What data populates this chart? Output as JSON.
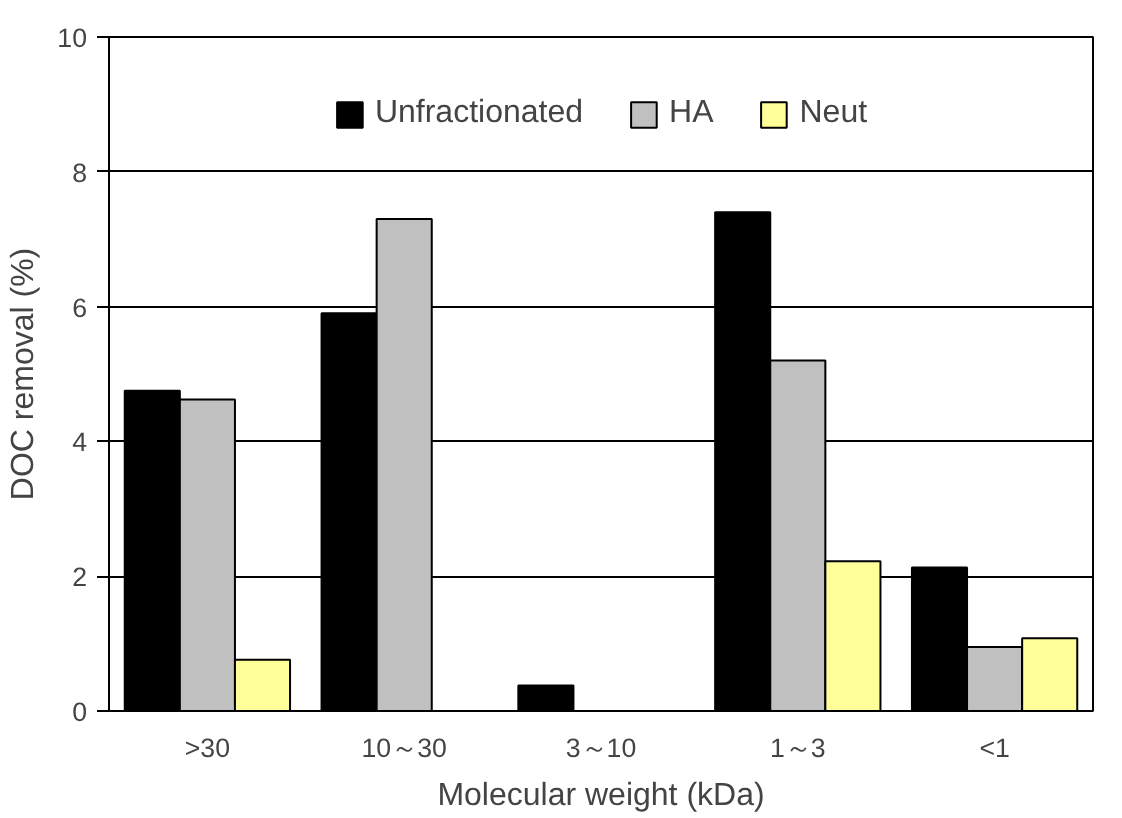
{
  "chart_data": {
    "type": "bar",
    "xlabel": "Molecular weight (kDa)",
    "ylabel": "DOC removal (%)",
    "categories": [
      ">30",
      "10～30",
      "3～10",
      "1～3",
      "<1"
    ],
    "series": [
      {
        "name": "Unfractionated",
        "color": "#000000",
        "values": [
          4.75,
          5.9,
          0.38,
          7.4,
          2.13
        ]
      },
      {
        "name": "HA",
        "color": "#c0c0c0",
        "values": [
          4.62,
          7.3,
          null,
          5.2,
          0.95
        ]
      },
      {
        "name": "Neut",
        "color": "#ffff99",
        "values": [
          0.76,
          null,
          null,
          2.22,
          1.08
        ]
      }
    ],
    "ylim": [
      0,
      10
    ],
    "yticks": [
      0,
      2,
      4,
      6,
      8,
      10
    ],
    "grid": "y",
    "legend": "top"
  }
}
